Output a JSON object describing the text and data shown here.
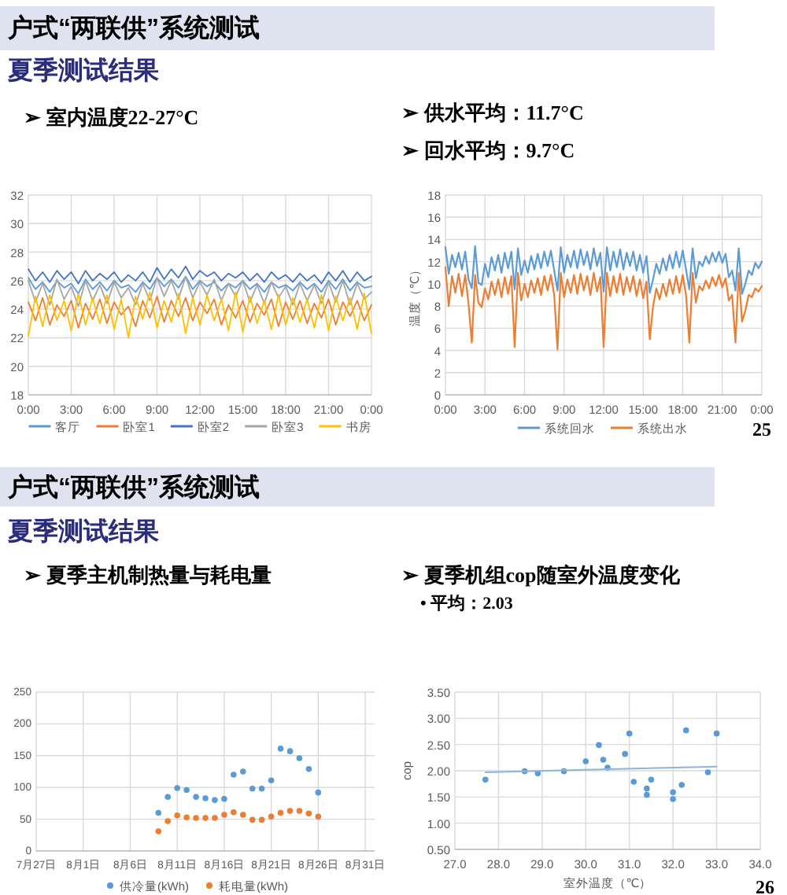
{
  "chart_data": [
    {
      "type": "line",
      "title": "户式“两联供”系统测试",
      "subtitle": "夏季测试结果",
      "annotations": [
        "➢ 室内温度22-27°C"
      ],
      "x": [
        0,
        0.5,
        1,
        1.5,
        2,
        2.5,
        3,
        3.5,
        4,
        4.5,
        5,
        5.5,
        6,
        6.5,
        7,
        7.5,
        8,
        8.5,
        9,
        9.5,
        10,
        10.5,
        11,
        11.5,
        12,
        12.5,
        13,
        13.5,
        14,
        14.5,
        15,
        15.5,
        16,
        16.5,
        17,
        17.5,
        18,
        18.5,
        19,
        19.5,
        20,
        20.5,
        21,
        21.5,
        22,
        22.5,
        23,
        23.5,
        24
      ],
      "series": [
        {
          "name": "客厅",
          "color": "#5b9bd5",
          "values": [
            26.2,
            25.4,
            25.9,
            25.2,
            26.0,
            25.5,
            25.8,
            25.1,
            26.1,
            25.4,
            25.9,
            25.3,
            26.0,
            25.5,
            25.7,
            25.2,
            25.9,
            25.4,
            26.2,
            25.6,
            26.1,
            25.5,
            26.3,
            25.4,
            26.0,
            25.6,
            25.9,
            25.3,
            25.8,
            25.5,
            26.0,
            25.4,
            25.8,
            25.2,
            25.9,
            25.5,
            25.7,
            25.3,
            25.9,
            25.4,
            25.8,
            25.2,
            26.0,
            25.4,
            26.1,
            25.3,
            25.9,
            25.5,
            25.6
          ]
        },
        {
          "name": "卧室1",
          "color": "#ed7d31",
          "values": [
            24.5,
            23.2,
            24.8,
            22.9,
            24.3,
            23.5,
            24.6,
            22.7,
            24.4,
            23.3,
            24.7,
            23.0,
            24.5,
            23.6,
            24.2,
            22.8,
            24.6,
            23.4,
            24.9,
            23.1,
            24.6,
            23.5,
            24.8,
            23.2,
            24.5,
            23.7,
            24.7,
            22.9,
            24.3,
            23.4,
            24.6,
            23.1,
            24.4,
            23.6,
            24.7,
            22.8,
            24.5,
            23.3,
            24.6,
            23.0,
            24.4,
            23.4,
            24.7,
            22.9,
            24.5,
            23.5,
            24.6,
            23.2,
            24.3
          ]
        },
        {
          "name": "卧室2",
          "color": "#4472c4",
          "values": [
            26.8,
            26.0,
            26.6,
            25.9,
            26.7,
            26.1,
            26.6,
            25.8,
            26.7,
            26.0,
            26.5,
            26.1,
            26.6,
            25.9,
            26.4,
            26.0,
            26.6,
            25.9,
            26.9,
            26.1,
            26.8,
            26.2,
            27.0,
            26.1,
            26.7,
            26.3,
            26.6,
            26.0,
            26.5,
            26.2,
            26.6,
            26.0,
            26.5,
            25.9,
            26.6,
            26.1,
            26.4,
            25.9,
            26.5,
            26.0,
            26.4,
            25.8,
            26.6,
            26.0,
            26.7,
            25.9,
            26.6,
            26.0,
            26.3
          ]
        },
        {
          "name": "卧室3",
          "color": "#a5a5a5",
          "values": [
            26.0,
            24.5,
            25.8,
            24.3,
            26.1,
            24.7,
            25.6,
            24.2,
            26.0,
            24.6,
            25.7,
            24.4,
            25.9,
            24.8,
            25.5,
            24.3,
            25.8,
            24.6,
            26.2,
            24.9,
            26.0,
            24.7,
            26.3,
            24.8,
            25.9,
            25.0,
            26.1,
            24.6,
            25.8,
            24.9,
            26.0,
            24.5,
            25.7,
            24.4,
            25.9,
            24.8,
            25.6,
            24.3,
            25.8,
            24.6,
            25.7,
            24.4,
            25.9,
            24.5,
            26.0,
            24.3,
            25.8,
            24.7,
            25.2
          ]
        },
        {
          "name": "书房",
          "color": "#ffc000",
          "values": [
            22.1,
            24.9,
            22.8,
            25.0,
            23.2,
            24.6,
            22.5,
            25.1,
            22.9,
            24.8,
            23.0,
            25.0,
            22.6,
            24.7,
            22.0,
            24.9,
            23.3,
            25.2,
            22.7,
            24.6,
            23.1,
            25.1,
            22.3,
            24.8,
            22.9,
            25.0,
            23.2,
            24.7,
            22.5,
            25.2,
            22.4,
            24.9,
            23.0,
            24.6,
            22.6,
            25.0,
            22.9,
            24.8,
            23.1,
            24.7,
            22.7,
            25.0,
            22.5,
            24.9,
            23.2,
            24.8,
            22.6,
            25.1,
            22.3
          ]
        }
      ],
      "xlim": [
        0,
        24
      ],
      "xticks": [
        {
          "value": 0,
          "label": "0:00"
        },
        {
          "value": 3,
          "label": "3:00"
        },
        {
          "value": 6,
          "label": "6:00"
        },
        {
          "value": 9,
          "label": "9:00"
        },
        {
          "value": 12,
          "label": "12:00"
        },
        {
          "value": 15,
          "label": "15:00"
        },
        {
          "value": 18,
          "label": "18:00"
        },
        {
          "value": 21,
          "label": "21:00"
        },
        {
          "value": 24,
          "label": "0:00"
        }
      ],
      "ylim": [
        18,
        32
      ],
      "yticks": [
        18,
        20,
        22,
        24,
        26,
        28,
        30,
        32
      ],
      "grid": true,
      "legend": "bottom",
      "line_style": "solid"
    },
    {
      "type": "line",
      "annotations": [
        "➢ 供水平均：11.7°C",
        "➢ 回水平均：9.7°C",
        "25"
      ],
      "ylabel": "温度（℃）",
      "x": [
        0,
        0.25,
        0.5,
        0.75,
        1,
        1.25,
        1.5,
        1.75,
        2,
        2.25,
        2.5,
        2.75,
        3,
        3.25,
        3.5,
        3.75,
        4,
        4.25,
        4.5,
        4.75,
        5,
        5.25,
        5.5,
        5.75,
        6,
        6.25,
        6.5,
        6.75,
        7,
        7.25,
        7.5,
        7.75,
        8,
        8.25,
        8.5,
        8.75,
        9,
        9.25,
        9.5,
        9.75,
        10,
        10.25,
        10.5,
        10.75,
        11,
        11.25,
        11.5,
        11.75,
        12,
        12.25,
        12.5,
        12.75,
        13,
        13.25,
        13.5,
        13.75,
        14,
        14.25,
        14.5,
        14.75,
        15,
        15.25,
        15.5,
        15.75,
        16,
        16.25,
        16.5,
        16.75,
        17,
        17.25,
        17.5,
        17.75,
        18,
        18.25,
        18.5,
        18.75,
        19,
        19.25,
        19.5,
        19.75,
        20,
        20.25,
        20.5,
        20.75,
        21,
        21.25,
        21.5,
        21.75,
        22,
        22.25,
        22.5,
        22.75,
        23,
        23.25,
        23.5,
        23.75,
        24
      ],
      "series": [
        {
          "name": "系统回水",
          "color": "#5b9bd5",
          "values": [
            13.3,
            10.9,
            12.6,
            11.5,
            12.8,
            11.3,
            12.9,
            10.4,
            9.6,
            13.4,
            10.1,
            9.9,
            11.8,
            10.6,
            12.4,
            11.2,
            12.6,
            11.0,
            12.8,
            11.4,
            12.9,
            9.5,
            13.2,
            10.8,
            12.1,
            11.0,
            12.5,
            11.3,
            12.7,
            11.4,
            12.9,
            11.6,
            13.0,
            11.2,
            9.4,
            13.3,
            11.0,
            12.6,
            11.5,
            13.0,
            11.4,
            13.1,
            11.7,
            12.9,
            11.3,
            13.2,
            11.6,
            12.8,
            9.3,
            13.3,
            11.2,
            12.9,
            11.5,
            13.1,
            11.3,
            12.8,
            11.6,
            12.9,
            11.2,
            12.6,
            11.0,
            12.5,
            9.2,
            10.4,
            11.8,
            10.9,
            12.3,
            11.2,
            12.6,
            11.4,
            12.9,
            11.5,
            13.0,
            11.3,
            9.5,
            13.2,
            10.5,
            12.0,
            11.6,
            12.5,
            11.8,
            12.8,
            12.0,
            12.9,
            11.9,
            12.7,
            10.6,
            11.2,
            9.4,
            13.2,
            9.1,
            10.0,
            11.2,
            10.8,
            11.9,
            11.4,
            12.0
          ]
        },
        {
          "name": "系统出水",
          "color": "#ed7d31",
          "values": [
            11.5,
            8.0,
            10.7,
            9.2,
            10.9,
            8.9,
            10.8,
            8.2,
            4.7,
            10.8,
            8.3,
            7.9,
            9.6,
            8.6,
            10.2,
            9.0,
            10.4,
            8.8,
            10.6,
            9.1,
            10.7,
            4.3,
            11.0,
            8.5,
            10.0,
            8.8,
            10.3,
            9.2,
            10.5,
            9.0,
            10.7,
            9.4,
            10.8,
            9.0,
            4.1,
            11.0,
            8.8,
            10.4,
            9.2,
            10.8,
            9.1,
            10.9,
            9.4,
            10.7,
            9.0,
            11.0,
            9.3,
            10.6,
            4.3,
            11.0,
            8.9,
            10.7,
            9.2,
            10.9,
            9.0,
            10.6,
            9.3,
            10.7,
            8.9,
            10.4,
            8.7,
            10.2,
            5.0,
            8.0,
            9.6,
            8.6,
            10.0,
            8.9,
            10.4,
            9.1,
            10.7,
            9.2,
            10.8,
            9.0,
            4.7,
            11.0,
            8.3,
            9.8,
            9.4,
            10.3,
            9.6,
            10.6,
            9.8,
            10.8,
            9.7,
            10.5,
            8.5,
            9.0,
            4.7,
            11.0,
            6.6,
            7.6,
            9.0,
            8.8,
            9.6,
            9.3,
            9.8
          ]
        }
      ],
      "xlim": [
        0,
        24
      ],
      "xticks": [
        {
          "value": 0,
          "label": "0:00"
        },
        {
          "value": 3,
          "label": "3:00"
        },
        {
          "value": 6,
          "label": "6:00"
        },
        {
          "value": 9,
          "label": "9:00"
        },
        {
          "value": 12,
          "label": "12:00"
        },
        {
          "value": 15,
          "label": "15:00"
        },
        {
          "value": 18,
          "label": "18:00"
        },
        {
          "value": 21,
          "label": "21:00"
        },
        {
          "value": 24,
          "label": "0:00"
        }
      ],
      "ylim": [
        0,
        18
      ],
      "yticks": [
        0,
        2,
        4,
        6,
        8,
        10,
        12,
        14,
        16,
        18
      ],
      "grid": true,
      "legend": "bottom",
      "line_style": "solid"
    },
    {
      "type": "scatter",
      "title": "户式“两联供”系统测试",
      "subtitle": "夏季测试结果",
      "annotations": [
        "➢ 夏季主机制热量与耗电量"
      ],
      "x": [
        "--08-09",
        "--08-10",
        "--08-11",
        "--08-12",
        "--08-13",
        "--08-14",
        "--08-15",
        "--08-16",
        "--08-17",
        "--08-18",
        "--08-19",
        "--08-20",
        "--08-21",
        "--08-22",
        "--08-23",
        "--08-24",
        "--08-25",
        "--08-26"
      ],
      "series": [
        {
          "name": "供冷量(kWh)",
          "color": "#5b9bd5",
          "values": [
            60,
            85,
            99,
            96,
            85,
            83,
            80,
            82,
            120,
            125,
            98,
            98,
            111,
            161,
            157,
            146,
            129,
            92
          ]
        },
        {
          "name": "耗电量(kWh)",
          "color": "#ed7d31",
          "values": [
            31,
            47,
            56,
            53,
            52,
            52,
            52,
            57,
            61,
            57,
            49,
            49,
            54,
            60,
            63,
            63,
            59,
            54
          ]
        }
      ],
      "xlim": [
        "--07-27",
        "--09-01"
      ],
      "xticks": [
        {
          "value": "--07-27",
          "label": "7月27日"
        },
        {
          "value": "--08-01",
          "label": "8月1日"
        },
        {
          "value": "--08-06",
          "label": "8月6日"
        },
        {
          "value": "--08-11",
          "label": "8月11日"
        },
        {
          "value": "--08-16",
          "label": "8月16日"
        },
        {
          "value": "--08-21",
          "label": "8月21日"
        },
        {
          "value": "--08-26",
          "label": "8月26日"
        },
        {
          "value": "--08-31",
          "label": "8月31日"
        }
      ],
      "ylim": [
        0,
        250
      ],
      "yticks": [
        0,
        50,
        100,
        150,
        200,
        250
      ],
      "grid": true,
      "legend": "bottom",
      "marker": "circle"
    },
    {
      "type": "scatter",
      "annotations": [
        "➢ 夏季机组cop随室外温度变化",
        "• 平均：2.03",
        "26"
      ],
      "xlabel": "室外温度（℃）",
      "ylabel": "cop",
      "series": [
        {
          "color": "#5b9bd5",
          "x": [
            27.7,
            28.6,
            28.9,
            29.5,
            30.0,
            30.3,
            30.4,
            30.5,
            30.9,
            31.0,
            31.1,
            31.4,
            31.4,
            31.5,
            32.0,
            32.0,
            32.2,
            32.3,
            32.8,
            33.0
          ],
          "values": [
            1.83,
            1.99,
            1.95,
            1.99,
            2.18,
            2.49,
            2.21,
            2.06,
            2.32,
            2.71,
            1.79,
            1.54,
            1.66,
            1.83,
            1.46,
            1.59,
            1.73,
            2.77,
            1.97,
            2.71
          ]
        },
        {
          "type": "line",
          "marker": "none",
          "color": "#8fb4dc",
          "x": [
            27.7,
            33.0
          ],
          "values": [
            1.97,
            2.08
          ]
        }
      ],
      "xlim": [
        27,
        34
      ],
      "xticks": [
        {
          "value": 27,
          "label": "27.0"
        },
        {
          "value": 28,
          "label": "28.0"
        },
        {
          "value": 29,
          "label": "29.0"
        },
        {
          "value": 30,
          "label": "30.0"
        },
        {
          "value": 31,
          "label": "31.0"
        },
        {
          "value": 32,
          "label": "32.0"
        },
        {
          "value": 33,
          "label": "33.0"
        },
        {
          "value": 34,
          "label": "34.0"
        }
      ],
      "ylim": [
        0.5,
        3.5
      ],
      "yticks": [
        {
          "value": 0.5,
          "label": "0.50"
        },
        {
          "value": 1,
          "label": "1.00"
        },
        {
          "value": 1.5,
          "label": "1.50"
        },
        {
          "value": 2,
          "label": "2.00"
        },
        {
          "value": 2.5,
          "label": "2.50"
        },
        {
          "value": 3,
          "label": "3.00"
        },
        {
          "value": 3.5,
          "label": "3.50"
        }
      ],
      "grid": true,
      "marker": "circle"
    }
  ]
}
